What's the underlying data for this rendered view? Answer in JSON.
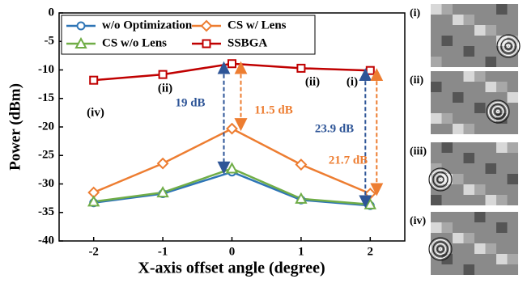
{
  "chart_data": {
    "type": "line",
    "x_label": "X-axis offset angle (degree)",
    "y_label": "Power (dBm)",
    "x": [
      -2,
      -1,
      0,
      1,
      2
    ],
    "xlim": [
      -2.5,
      2.5
    ],
    "xticks": [
      -2,
      -1,
      0,
      1,
      2
    ],
    "ylim": [
      -40,
      0
    ],
    "yticks": [
      -40,
      -35,
      -30,
      -25,
      -20,
      -15,
      -10,
      -5,
      0
    ],
    "legend": "top-left",
    "series": [
      {
        "name": "w/o Optimization",
        "color": "#2e75b6",
        "marker": "circle",
        "values": [
          -33.3,
          -31.7,
          -27.9,
          -32.8,
          -33.8
        ]
      },
      {
        "name": "CS w/ Lens",
        "color": "#ed7d31",
        "marker": "diamond",
        "values": [
          -31.5,
          -26.4,
          -20.3,
          -26.6,
          -31.7
        ]
      },
      {
        "name": "CS w/o Lens",
        "color": "#70ad47",
        "marker": "triangle",
        "values": [
          -33.1,
          -31.5,
          -27.3,
          -32.6,
          -33.6
        ]
      },
      {
        "name": "SSBGA",
        "color": "#c00000",
        "marker": "square",
        "values": [
          -11.8,
          -10.8,
          -8.9,
          -9.7,
          -10.1
        ]
      }
    ],
    "annotations": [
      {
        "text": "(iv)",
        "color": "#000000"
      },
      {
        "text": "(ii)",
        "color": "#000000"
      },
      {
        "text": "(ii)",
        "color": "#000000"
      },
      {
        "text": "(i)",
        "color": "#000000"
      },
      {
        "text": "19 dB",
        "color": "#2e5597"
      },
      {
        "text": "11.5 dB",
        "color": "#ed7d31"
      },
      {
        "text": "23.9 dB",
        "color": "#2e5597"
      },
      {
        "text": "21.7 dB",
        "color": "#ed7d31"
      }
    ],
    "panel_labels": [
      "(i)",
      "(ii)",
      "(iii)",
      "(iv)"
    ]
  }
}
